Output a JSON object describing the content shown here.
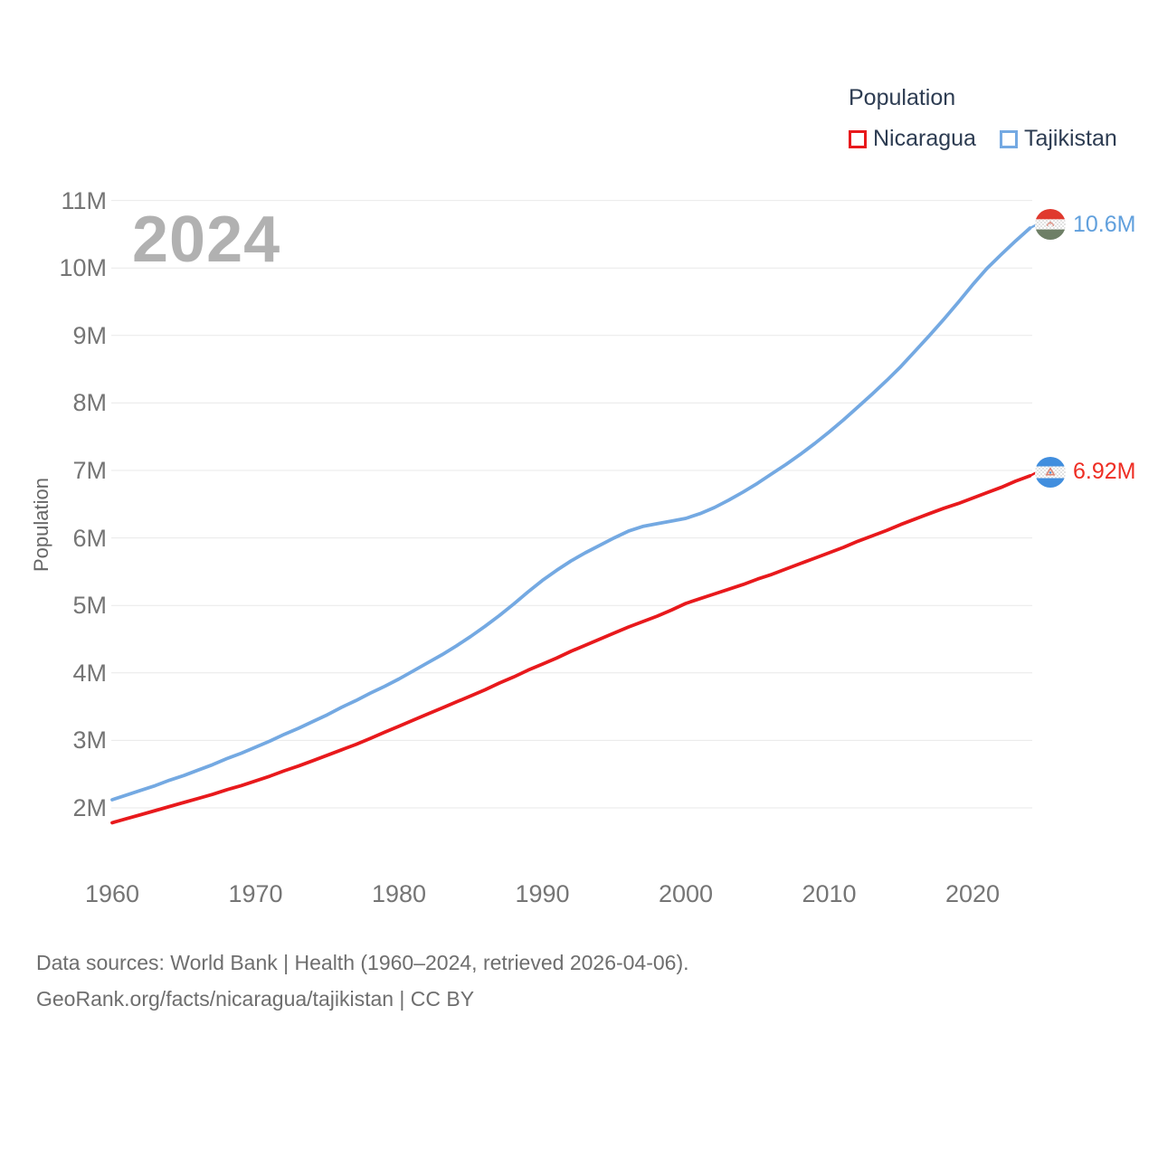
{
  "watermark": "2024",
  "legend": {
    "title": "Population",
    "items": [
      {
        "label": "Nicaragua",
        "color": "#e8191c"
      },
      {
        "label": "Tajikistan",
        "color": "#74a9e2"
      }
    ]
  },
  "y_axis": {
    "title": "Population",
    "ticks": [
      "2M",
      "3M",
      "4M",
      "5M",
      "6M",
      "7M",
      "8M",
      "9M",
      "10M",
      "11M"
    ]
  },
  "x_axis": {
    "ticks": [
      "1960",
      "1970",
      "1980",
      "1990",
      "2000",
      "2010",
      "2020"
    ]
  },
  "end_labels": [
    {
      "series": "Tajikistan",
      "value": "10.6M",
      "color": "#61a0dd",
      "flag_icon": "tajikistan-flag-icon"
    },
    {
      "series": "Nicaragua",
      "value": "6.92M",
      "color": "#ee2e24",
      "flag_icon": "nicaragua-flag-icon"
    }
  ],
  "footer": {
    "line1": "Data sources: World Bank | Health (1960–2024, retrieved 2026-04-06).",
    "line2": "GeoRank.org/facts/nicaragua/tajikistan | CC BY"
  },
  "colors": {
    "nicaragua_line": "#e8191c",
    "tajikistan_line": "#74a9e2",
    "gridline": "#e9e9e9",
    "tick_text": "#757575",
    "legend_text": "#2d3c52",
    "watermark": "#b1b1b1",
    "footer_text": "#6e6e6e"
  },
  "chart_data": {
    "type": "line",
    "title": "Population",
    "xlabel": "",
    "ylabel": "Population",
    "grid": true,
    "legend_position": "top-right",
    "ylim": [
      1.5,
      11.3
    ],
    "y_gridlines": [
      2,
      3,
      4,
      5,
      6,
      7,
      8,
      9,
      10,
      11
    ],
    "x_ticks": [
      1960,
      1970,
      1980,
      1990,
      2000,
      2010,
      2020
    ],
    "x": [
      1960,
      1961,
      1962,
      1963,
      1964,
      1965,
      1966,
      1967,
      1968,
      1969,
      1970,
      1971,
      1972,
      1973,
      1974,
      1975,
      1976,
      1977,
      1978,
      1979,
      1980,
      1981,
      1982,
      1983,
      1984,
      1985,
      1986,
      1987,
      1988,
      1989,
      1990,
      1991,
      1992,
      1993,
      1994,
      1995,
      1996,
      1997,
      1998,
      1999,
      2000,
      2001,
      2002,
      2003,
      2004,
      2005,
      2006,
      2007,
      2008,
      2009,
      2010,
      2011,
      2012,
      2013,
      2014,
      2015,
      2016,
      2017,
      2018,
      2019,
      2020,
      2021,
      2022,
      2023,
      2024
    ],
    "series": [
      {
        "name": "Nicaragua",
        "color": "#e8191c",
        "unit": "millions",
        "end_label": "6.92M",
        "values": [
          1.78,
          1.84,
          1.9,
          1.96,
          2.02,
          2.08,
          2.14,
          2.2,
          2.27,
          2.33,
          2.4,
          2.47,
          2.55,
          2.62,
          2.7,
          2.78,
          2.86,
          2.94,
          3.03,
          3.12,
          3.21,
          3.3,
          3.39,
          3.48,
          3.57,
          3.66,
          3.75,
          3.85,
          3.94,
          4.04,
          4.13,
          4.22,
          4.32,
          4.41,
          4.5,
          4.59,
          4.68,
          4.76,
          4.84,
          4.93,
          5.03,
          5.1,
          5.17,
          5.24,
          5.31,
          5.39,
          5.46,
          5.54,
          5.62,
          5.7,
          5.78,
          5.86,
          5.95,
          6.03,
          6.11,
          6.2,
          6.28,
          6.36,
          6.44,
          6.51,
          6.59,
          6.67,
          6.75,
          6.84,
          6.92
        ]
      },
      {
        "name": "Tajikistan",
        "color": "#74a9e2",
        "unit": "millions",
        "end_label": "10.6M",
        "values": [
          2.12,
          2.19,
          2.26,
          2.33,
          2.41,
          2.48,
          2.56,
          2.64,
          2.73,
          2.81,
          2.9,
          2.99,
          3.09,
          3.18,
          3.28,
          3.38,
          3.49,
          3.59,
          3.7,
          3.8,
          3.91,
          4.03,
          4.15,
          4.27,
          4.4,
          4.54,
          4.69,
          4.85,
          5.02,
          5.2,
          5.37,
          5.52,
          5.66,
          5.78,
          5.89,
          6.0,
          6.1,
          6.17,
          6.21,
          6.25,
          6.29,
          6.36,
          6.45,
          6.56,
          6.68,
          6.81,
          6.95,
          7.09,
          7.24,
          7.4,
          7.57,
          7.75,
          7.94,
          8.13,
          8.33,
          8.54,
          8.77,
          9.0,
          9.24,
          9.49,
          9.75,
          9.99,
          10.2,
          10.4,
          10.59
        ]
      }
    ]
  }
}
